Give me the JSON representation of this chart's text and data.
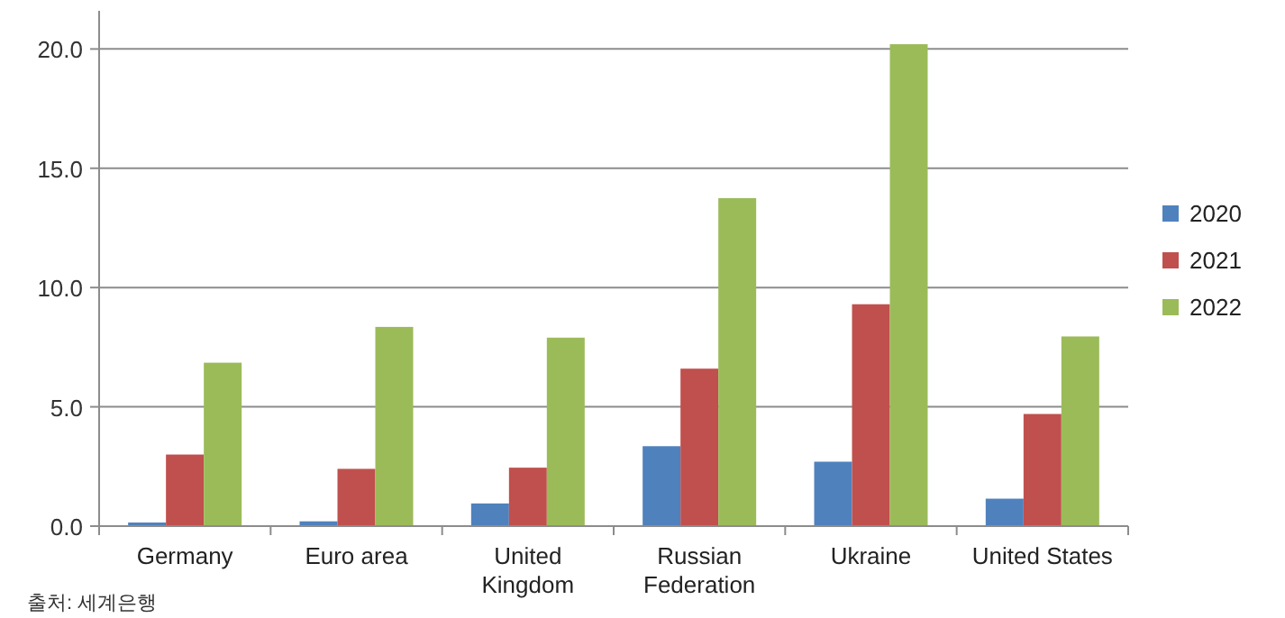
{
  "chart_data": {
    "type": "bar",
    "categories": [
      "Germany",
      "Euro area",
      "United Kingdom",
      "Russian Federation",
      "Ukraine",
      "United States"
    ],
    "series": [
      {
        "name": "2020",
        "color": "#4f81bd",
        "values": [
          0.15,
          0.2,
          0.95,
          3.35,
          2.7,
          1.15
        ]
      },
      {
        "name": "2021",
        "color": "#c0504d",
        "values": [
          3.0,
          2.4,
          2.45,
          6.6,
          9.3,
          4.7
        ]
      },
      {
        "name": "2022",
        "color": "#9bbb59",
        "values": [
          6.85,
          8.35,
          7.9,
          13.75,
          20.2,
          7.95
        ]
      }
    ],
    "ylim": [
      0,
      21.6
    ],
    "yticks": [
      {
        "value": 0,
        "label": "0.0"
      },
      {
        "value": 5,
        "label": "5.0"
      },
      {
        "value": 10,
        "label": "10.0"
      },
      {
        "value": 15,
        "label": "15.0"
      },
      {
        "value": 20,
        "label": "20.0"
      }
    ],
    "grid": "y",
    "legend": "right",
    "annotations": [
      "출처: 세계은행"
    ]
  }
}
